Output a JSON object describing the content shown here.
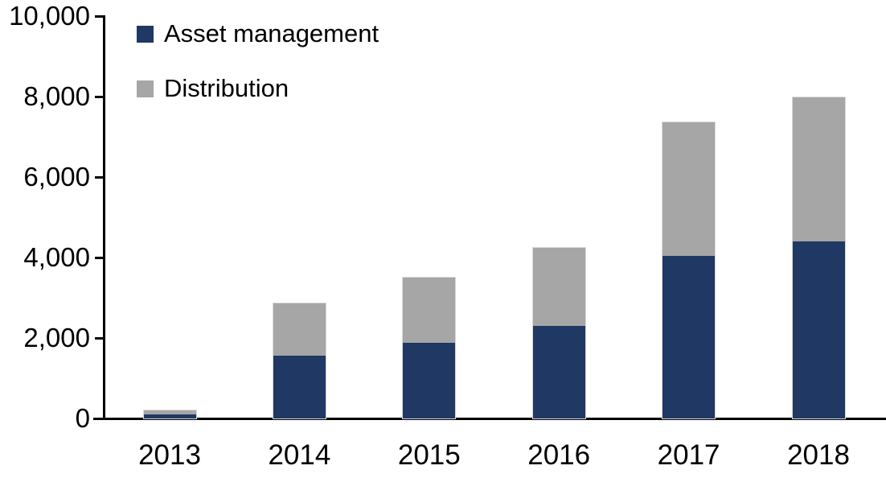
{
  "chart_data": {
    "type": "bar",
    "stacked": true,
    "title": "",
    "xlabel": "",
    "ylabel": "",
    "categories": [
      "2013",
      "2014",
      "2015",
      "2016",
      "2017",
      "2018"
    ],
    "series": [
      {
        "name": "Asset management",
        "color": "#1F3864",
        "values": [
          110,
          1560,
          1890,
          2310,
          4040,
          4410
        ]
      },
      {
        "name": "Distribution",
        "color": "#A6A6A6",
        "values": [
          85,
          1300,
          1610,
          1930,
          3330,
          3580
        ]
      }
    ],
    "ylim": [
      0,
      10000
    ],
    "ytick_step": 2000,
    "ytick_labels": [
      "0",
      "2,000",
      "4,000",
      "6,000",
      "8,000",
      "10,000"
    ],
    "legend_position": "top-left",
    "grid": false,
    "axis_color": "#000000",
    "bar_border_color": "#D9D9D9",
    "background": "#FFFFFF"
  }
}
